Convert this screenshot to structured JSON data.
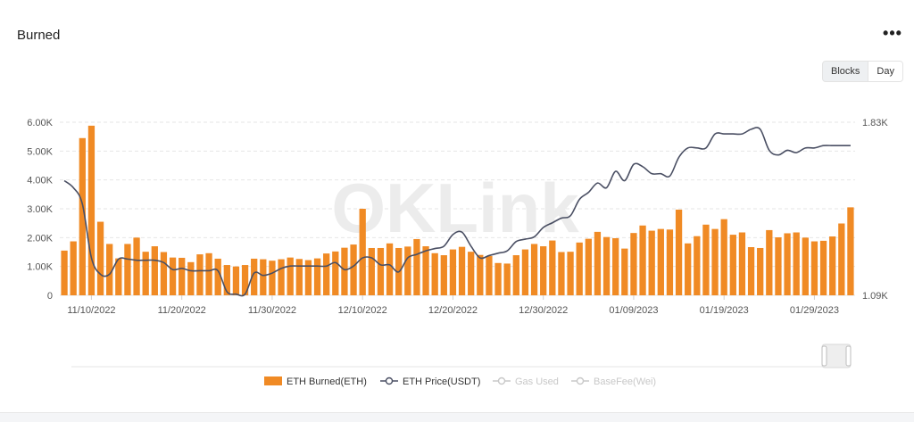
{
  "header": {
    "title": "Burned",
    "menu_icon": "more-horizontal-icon"
  },
  "toggle": {
    "blocks_label": "Blocks",
    "day_label": "Day",
    "active": "Day"
  },
  "watermark": "OKLink",
  "colors": {
    "bar": "#f08a24",
    "line": "#4a4f63",
    "grid": "#e6e6e6",
    "disabled": "#c8c8c8"
  },
  "chart_data": {
    "type": "bar",
    "x_ticks": [
      "11/10/2022",
      "11/20/2022",
      "11/30/2022",
      "12/10/2022",
      "12/20/2022",
      "12/30/2022",
      "01/09/2023",
      "01/19/2023",
      "01/29/2023"
    ],
    "x_tick_index": [
      3,
      13,
      23,
      33,
      43,
      53,
      63,
      73,
      83
    ],
    "y_left": {
      "ticks": [
        "0",
        "1.00K",
        "2.00K",
        "3.00K",
        "4.00K",
        "5.00K",
        "6.00K"
      ],
      "range": [
        0,
        6000
      ]
    },
    "y_right": {
      "ticks": [
        "1.09K",
        "1.83K"
      ],
      "range": [
        1090,
        1830
      ]
    },
    "grid": true,
    "legend_position": "bottom",
    "series": [
      {
        "name": "ETH Burned(ETH)",
        "type": "bar",
        "axis": "left",
        "values": [
          1550,
          1870,
          5450,
          5880,
          2550,
          1780,
          1280,
          1780,
          2000,
          1510,
          1700,
          1500,
          1310,
          1300,
          1150,
          1420,
          1460,
          1270,
          1050,
          1000,
          1050,
          1270,
          1250,
          1200,
          1250,
          1310,
          1260,
          1220,
          1280,
          1450,
          1520,
          1650,
          1760,
          3000,
          1640,
          1640,
          1800,
          1640,
          1690,
          1950,
          1700,
          1460,
          1390,
          1590,
          1680,
          1510,
          1400,
          1360,
          1120,
          1100,
          1390,
          1590,
          1780,
          1700,
          1900,
          1500,
          1510,
          1830,
          1960,
          2200,
          2020,
          1980,
          1620,
          2160,
          2420,
          2240,
          2300,
          2280,
          2970,
          1800,
          2050,
          2450,
          2300,
          2640,
          2100,
          2180,
          1670,
          1640,
          2260,
          2010,
          2150,
          2180,
          2000,
          1870,
          1890,
          2040,
          2490,
          3050
        ]
      },
      {
        "name": "ETH Price(USDT)",
        "type": "line",
        "axis": "right",
        "values": [
          1580,
          1550,
          1480,
          1250,
          1180,
          1180,
          1245,
          1245,
          1240,
          1240,
          1240,
          1230,
          1200,
          1205,
          1195,
          1195,
          1195,
          1195,
          1105,
          1095,
          1095,
          1185,
          1175,
          1185,
          1205,
          1215,
          1215,
          1215,
          1215,
          1215,
          1230,
          1200,
          1215,
          1250,
          1250,
          1220,
          1220,
          1190,
          1250,
          1265,
          1280,
          1290,
          1300,
          1350,
          1360,
          1300,
          1250,
          1260,
          1270,
          1280,
          1320,
          1330,
          1340,
          1380,
          1400,
          1420,
          1430,
          1500,
          1530,
          1570,
          1550,
          1620,
          1580,
          1650,
          1640,
          1610,
          1610,
          1600,
          1680,
          1720,
          1720,
          1720,
          1780,
          1780,
          1780,
          1780,
          1800,
          1800,
          1710,
          1690,
          1710,
          1700,
          1720,
          1720,
          1730,
          1730,
          1730,
          1730
        ]
      },
      {
        "name": "Gas Used",
        "type": "line",
        "disabled": true
      },
      {
        "name": "BaseFee(Wei)",
        "type": "line",
        "disabled": true
      }
    ]
  }
}
